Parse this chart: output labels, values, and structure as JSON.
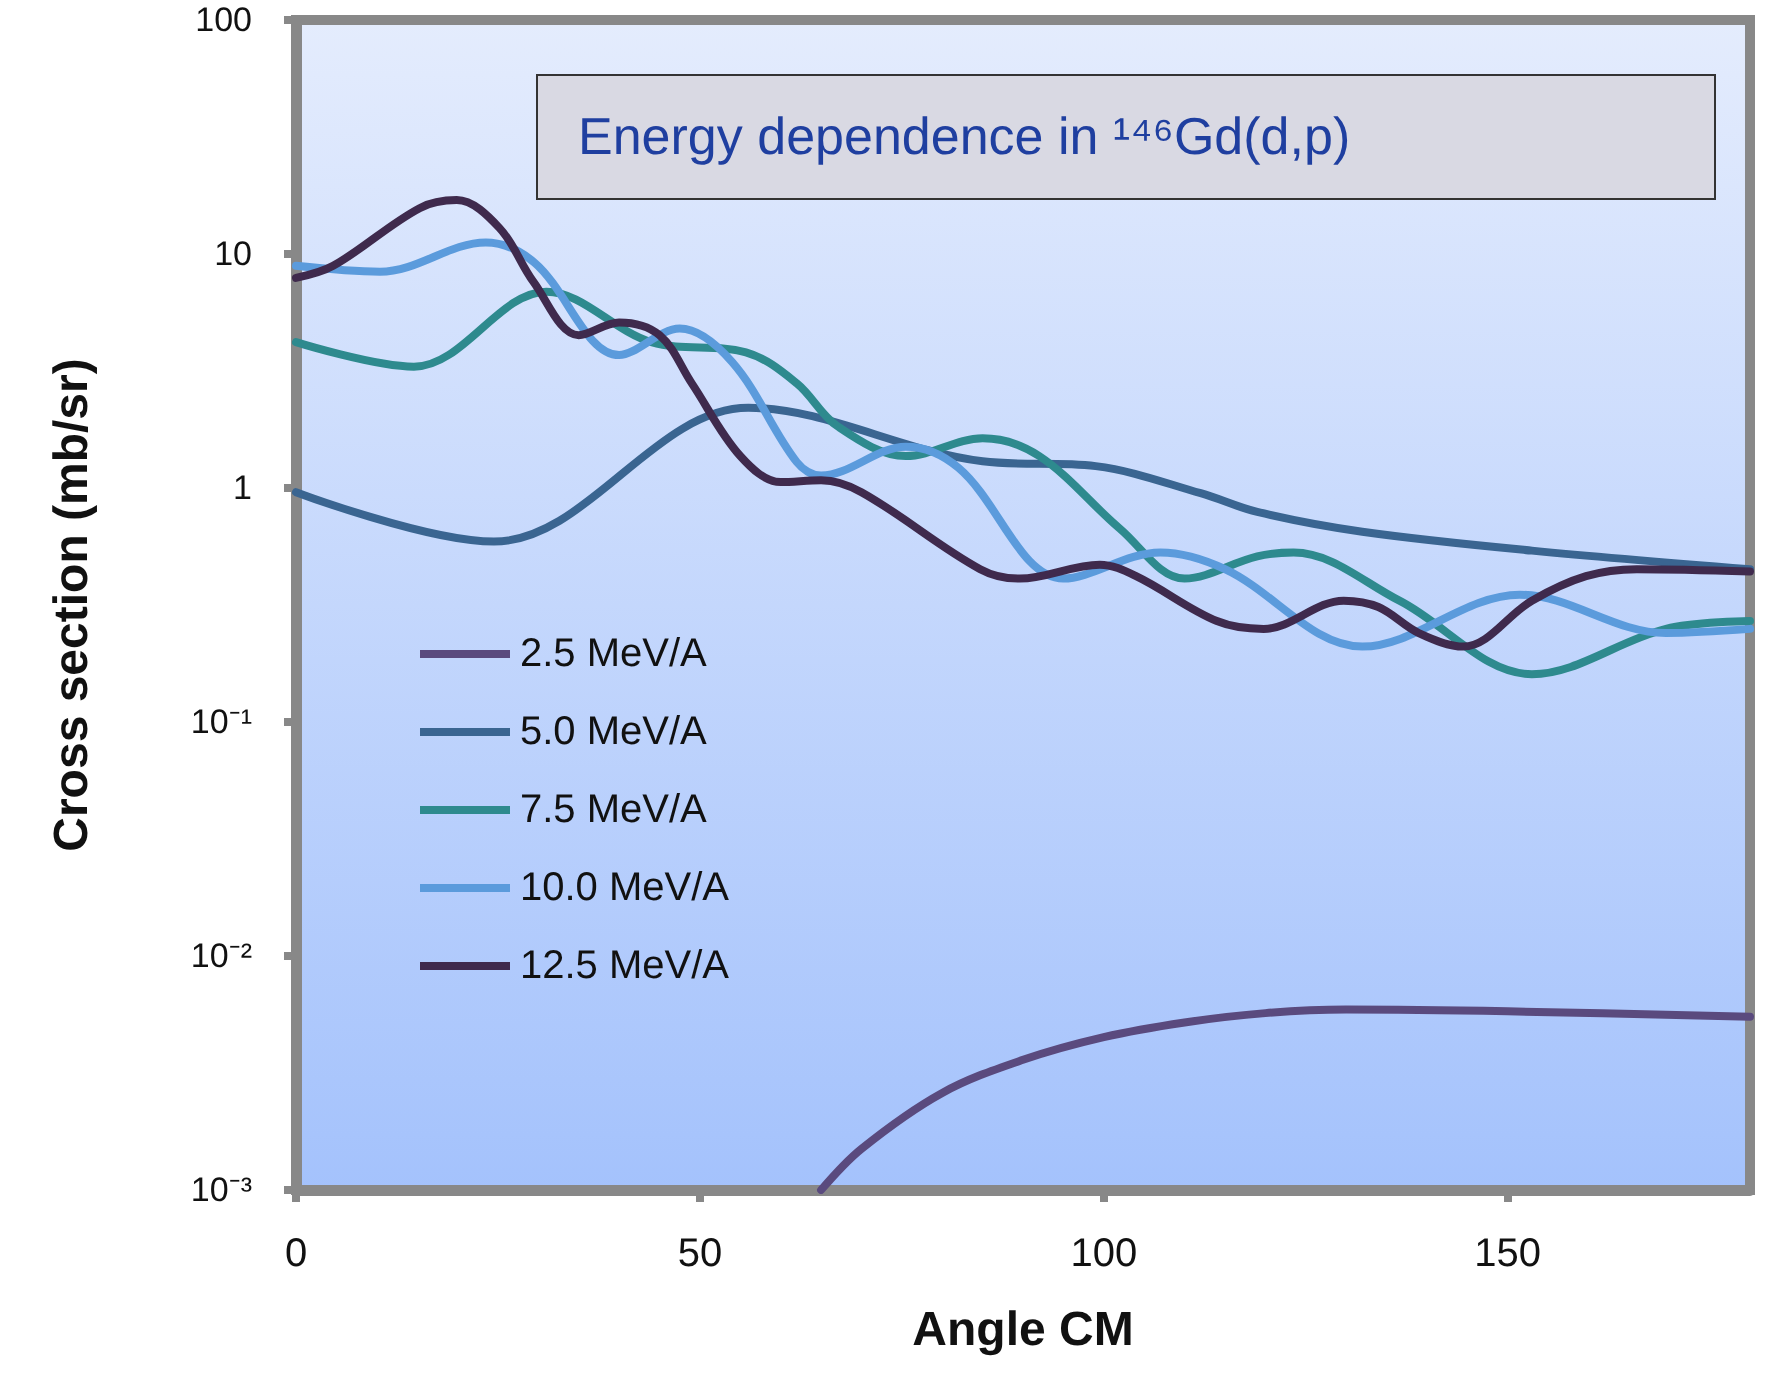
{
  "chart_data": {
    "type": "line",
    "title": "Energy dependence in ¹⁴⁶Gd(d,p)",
    "xlabel": "Angle CM",
    "ylabel": "Cross section (mb/sr)",
    "xlim": [
      0,
      180
    ],
    "xticks": [
      0,
      50,
      100,
      150
    ],
    "ylim": [
      0.001,
      100
    ],
    "yticks": [
      100,
      10,
      1,
      {
        "value": 0.1,
        "label": "10⁻¹"
      },
      {
        "value": 0.01,
        "label": "10⁻²"
      },
      {
        "value": 0.001,
        "label": "10⁻³"
      }
    ],
    "log": "y",
    "grid": false,
    "legend": "left",
    "marker": "none",
    "series": [
      {
        "name": "2.5 MeV/A",
        "color": "#5a4a7e",
        "x": [
          65,
          70,
          80,
          90,
          100,
          110,
          120,
          130,
          150,
          180
        ],
        "values": [
          0.001,
          0.0015,
          0.0026,
          0.0036,
          0.0045,
          0.0052,
          0.0057,
          0.0059,
          0.0058,
          0.0055
        ]
      },
      {
        "name": "5.0 MeV/A",
        "color": "#3a6591",
        "x": [
          0,
          24.5,
          56,
          85,
          99,
          112,
          119,
          132,
          153,
          180
        ],
        "values": [
          0.96,
          0.59,
          2.2,
          1.3,
          1.24,
          0.95,
          0.79,
          0.65,
          0.54,
          0.45
        ]
      },
      {
        "name": "7.5 MeV/A",
        "color": "#2e8a8e",
        "x": [
          0,
          14.6,
          31,
          44,
          55.7,
          62,
          67,
          75.5,
          85,
          92,
          102,
          110,
          119,
          123.5,
          136.6,
          153,
          169.6,
          180
        ],
        "values": [
          4.2,
          3.3,
          6.9,
          4.2,
          3.8,
          2.8,
          1.84,
          1.37,
          1.63,
          1.37,
          0.67,
          0.41,
          0.51,
          0.53,
          0.33,
          0.16,
          0.25,
          0.27
        ]
      },
      {
        "name": "10.0 MeV/A",
        "color": "#5b9bdc",
        "x": [
          0,
          10.4,
          23.5,
          29.5,
          40,
          47.5,
          54,
          62,
          65,
          75.5,
          82,
          95,
          107,
          115,
          132,
          151.5,
          169.6,
          180
        ],
        "values": [
          8.9,
          8.4,
          11.2,
          9.2,
          3.7,
          4.8,
          3.45,
          1.29,
          1.13,
          1.5,
          1.22,
          0.41,
          0.53,
          0.45,
          0.21,
          0.35,
          0.24,
          0.25
        ]
      },
      {
        "name": "12.5 MeV/A",
        "color": "#3f2a4d",
        "x": [
          0,
          4.6,
          15.3,
          19.9,
          25.2,
          29.4,
          35,
          40,
          45,
          49,
          55,
          60,
          65,
          70,
          84.7,
          89.6,
          99.5,
          104,
          114,
          119.8,
          129.7,
          134,
          139,
          144.5,
          153,
          159.7,
          166,
          180
        ],
        "values": [
          7.9,
          8.9,
          15.7,
          17,
          12.9,
          7.6,
          4.5,
          5.1,
          4.5,
          2.8,
          1.37,
          1.06,
          1.08,
          0.96,
          0.45,
          0.41,
          0.47,
          0.42,
          0.27,
          0.25,
          0.33,
          0.31,
          0.24,
          0.21,
          0.33,
          0.42,
          0.45,
          0.44
        ]
      }
    ]
  }
}
